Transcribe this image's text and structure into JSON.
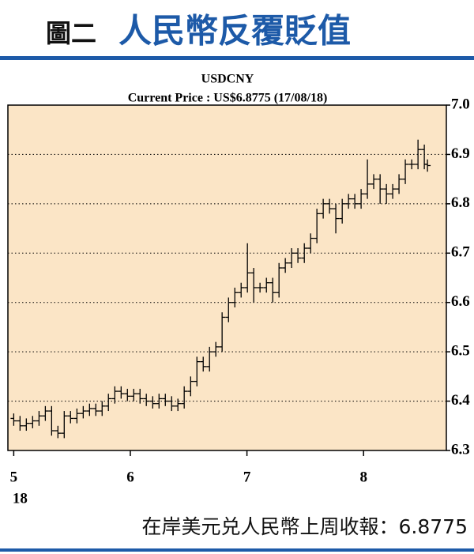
{
  "header": {
    "label": "圖二",
    "title": "人民幣反覆貶值"
  },
  "chart_data": {
    "type": "ohlc",
    "title": "USDCNY",
    "subtitle": "Current Price : US$6.8775 (17/08/18)",
    "color": "#000000",
    "background": "#fbe5c6",
    "grid": true,
    "xlim": [
      4.95,
      8.71
    ],
    "xticks": [
      5,
      6,
      7,
      8
    ],
    "year_label": "18",
    "ylim": [
      6.3,
      7.0
    ],
    "yticks": [
      {
        "value": 7.0,
        "label": "7.0"
      },
      6.9,
      6.8,
      6.7,
      6.6,
      6.5,
      6.4,
      6.3
    ],
    "x": [
      5.0,
      5.054,
      5.108,
      5.162,
      5.217,
      5.271,
      5.325,
      5.379,
      5.433,
      5.487,
      5.542,
      5.596,
      5.65,
      5.704,
      5.758,
      5.812,
      5.867,
      5.921,
      5.975,
      6.029,
      6.083,
      6.137,
      6.192,
      6.246,
      6.3,
      6.354,
      6.408,
      6.462,
      6.517,
      6.571,
      6.625,
      6.679,
      6.733,
      6.787,
      6.842,
      6.896,
      6.95,
      7.004,
      7.058,
      7.112,
      7.167,
      7.221,
      7.275,
      7.329,
      7.383,
      7.437,
      7.492,
      7.546,
      7.6,
      7.654,
      7.708,
      7.762,
      7.817,
      7.871,
      7.925,
      7.979,
      8.033,
      8.087,
      8.142,
      8.196,
      8.25,
      8.304,
      8.358,
      8.413,
      8.467,
      8.521,
      8.548
    ],
    "open": [
      6.365,
      6.36,
      6.35,
      6.355,
      6.36,
      6.37,
      6.38,
      6.34,
      6.335,
      6.37,
      6.365,
      6.375,
      6.38,
      6.385,
      6.38,
      6.39,
      6.405,
      6.42,
      6.415,
      6.41,
      6.415,
      6.405,
      6.4,
      6.395,
      6.405,
      6.4,
      6.39,
      6.395,
      6.42,
      6.44,
      6.48,
      6.47,
      6.5,
      6.51,
      6.57,
      6.6,
      6.62,
      6.63,
      6.66,
      6.63,
      6.63,
      6.64,
      6.62,
      6.67,
      6.68,
      6.7,
      6.69,
      6.71,
      6.73,
      6.78,
      6.8,
      6.79,
      6.77,
      6.8,
      6.81,
      6.8,
      6.82,
      6.84,
      6.85,
      6.83,
      6.82,
      6.83,
      6.85,
      6.88,
      6.88,
      6.91,
      6.88
    ],
    "high": [
      6.375,
      6.37,
      6.365,
      6.37,
      6.38,
      6.39,
      6.39,
      6.35,
      6.38,
      6.38,
      6.385,
      6.39,
      6.395,
      6.395,
      6.4,
      6.415,
      6.43,
      6.43,
      6.425,
      6.425,
      6.425,
      6.415,
      6.41,
      6.415,
      6.415,
      6.41,
      6.405,
      6.43,
      6.45,
      6.49,
      6.49,
      6.51,
      6.52,
      6.58,
      6.61,
      6.63,
      6.64,
      6.72,
      6.67,
      6.64,
      6.65,
      6.65,
      6.68,
      6.69,
      6.71,
      6.71,
      6.72,
      6.74,
      6.79,
      6.81,
      6.81,
      6.8,
      6.81,
      6.82,
      6.82,
      6.83,
      6.89,
      6.86,
      6.86,
      6.84,
      6.84,
      6.86,
      6.89,
      6.89,
      6.93,
      6.92,
      6.89
    ],
    "low": [
      6.35,
      6.34,
      6.34,
      6.345,
      6.35,
      6.36,
      6.33,
      6.325,
      6.325,
      6.355,
      6.355,
      6.365,
      6.37,
      6.37,
      6.37,
      6.38,
      6.395,
      6.405,
      6.4,
      6.4,
      6.395,
      6.39,
      6.385,
      6.385,
      6.39,
      6.38,
      6.38,
      6.385,
      6.41,
      6.43,
      6.46,
      6.46,
      6.49,
      6.5,
      6.56,
      6.59,
      6.61,
      6.62,
      6.6,
      6.62,
      6.62,
      6.6,
      6.61,
      6.66,
      6.67,
      6.68,
      6.68,
      6.7,
      6.72,
      6.77,
      6.78,
      6.74,
      6.76,
      6.79,
      6.79,
      6.79,
      6.81,
      6.83,
      6.8,
      6.8,
      6.81,
      6.82,
      6.84,
      6.87,
      6.87,
      6.87,
      6.865
    ],
    "close": [
      6.36,
      6.35,
      6.355,
      6.36,
      6.37,
      6.38,
      6.34,
      6.335,
      6.37,
      6.365,
      6.375,
      6.38,
      6.385,
      6.38,
      6.39,
      6.405,
      6.42,
      6.415,
      6.41,
      6.415,
      6.405,
      6.4,
      6.395,
      6.405,
      6.4,
      6.39,
      6.395,
      6.42,
      6.44,
      6.48,
      6.47,
      6.5,
      6.51,
      6.57,
      6.6,
      6.62,
      6.63,
      6.66,
      6.63,
      6.63,
      6.64,
      6.62,
      6.67,
      6.68,
      6.7,
      6.69,
      6.71,
      6.73,
      6.78,
      6.8,
      6.79,
      6.77,
      6.8,
      6.81,
      6.8,
      6.82,
      6.84,
      6.85,
      6.83,
      6.82,
      6.83,
      6.85,
      6.88,
      6.88,
      6.91,
      6.88,
      6.8775
    ]
  },
  "footer": "在岸美元兑人民幣上周收報：6.8775"
}
